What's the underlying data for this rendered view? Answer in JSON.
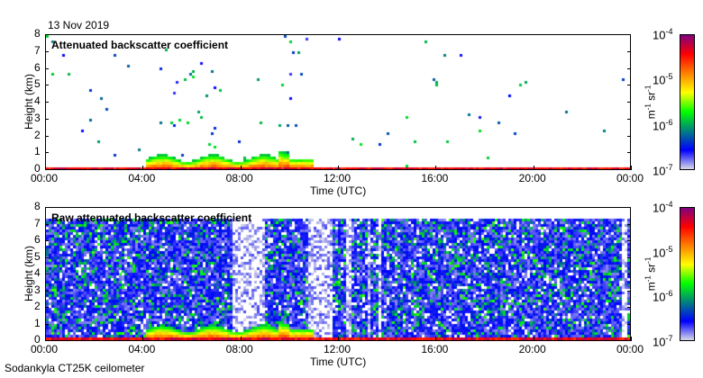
{
  "header": {
    "date": "13 Nov 2019"
  },
  "footer": {
    "instrument": "Sodankyla CT25K ceilometer"
  },
  "chart_data": [
    {
      "type": "heatmap",
      "title": "Attenuated backscatter coefficient",
      "xlabel": "Time (UTC)",
      "ylabel": "Height (km)",
      "xticks": [
        "00:00",
        "04:00",
        "08:00",
        "12:00",
        "16:00",
        "20:00",
        "00:00"
      ],
      "yticks": [
        "0",
        "1",
        "2",
        "3",
        "4",
        "5",
        "6",
        "7",
        "8"
      ],
      "ylim": [
        0,
        8
      ],
      "colorbar": {
        "label": "m-1 sr-1",
        "ticks": [
          "10-7",
          "10-6",
          "10-5",
          "10-4"
        ],
        "range": [
          1e-07,
          0.0001
        ],
        "scale": "log"
      },
      "mode": "clean"
    },
    {
      "type": "heatmap",
      "title": "Raw attenuated backscatter coefficient",
      "xlabel": "Time (UTC)",
      "ylabel": "Height (km)",
      "xticks": [
        "00:00",
        "04:00",
        "08:00",
        "12:00",
        "16:00",
        "20:00",
        "00:00"
      ],
      "yticks": [
        "0",
        "1",
        "2",
        "3",
        "4",
        "5",
        "6",
        "7",
        "8"
      ],
      "ylim": [
        0,
        8
      ],
      "colorbar": {
        "label": "m-1 sr-1",
        "ticks": [
          "10-7",
          "10-6",
          "10-5",
          "10-4"
        ],
        "range": [
          1e-07,
          0.0001
        ],
        "scale": "log"
      },
      "mode": "raw"
    }
  ],
  "colormap": [
    "#d8d8e8",
    "#0000ff",
    "#008080",
    "#00ff00",
    "#ffff00",
    "#ff8000",
    "#ff0000",
    "#800080"
  ]
}
